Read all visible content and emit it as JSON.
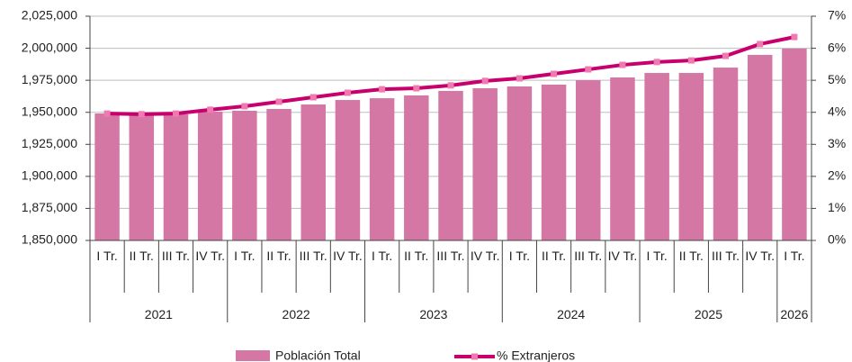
{
  "chart_data": {
    "type": "combo",
    "categories": [
      "I Tr.",
      "II Tr.",
      "III Tr.",
      "IV Tr.",
      "I Tr.",
      "II Tr.",
      "III Tr.",
      "IV Tr.",
      "I Tr.",
      "II Tr.",
      "III Tr.",
      "IV Tr.",
      "I Tr.",
      "II Tr.",
      "III Tr.",
      "IV Tr.",
      "I Tr.",
      "II Tr.",
      "III Tr.",
      "IV Tr.",
      "I Tr."
    ],
    "years": [
      "2021",
      "2021",
      "2021",
      "2021",
      "2022",
      "2022",
      "2022",
      "2022",
      "2023",
      "2023",
      "2023",
      "2023",
      "2024",
      "2024",
      "2024",
      "2024",
      "2025",
      "2025",
      "2025",
      "2025",
      "2026"
    ],
    "series": [
      {
        "name": "Población Total",
        "type": "bar",
        "color": "#d477a5",
        "values": [
          1949100,
          1948400,
          1948400,
          1950500,
          1951200,
          1952600,
          1956100,
          1959600,
          1961000,
          1963200,
          1966700,
          1968800,
          1970200,
          1971600,
          1975100,
          1977200,
          1980700,
          1980700,
          1984900,
          1994800,
          1999700
        ]
      },
      {
        "name": "% Extranjeros",
        "type": "line",
        "axis": "y2",
        "color": "#c8006e",
        "marker_color": "#f07ab0",
        "values": [
          3.96,
          3.94,
          3.96,
          4.08,
          4.19,
          4.33,
          4.47,
          4.61,
          4.72,
          4.75,
          4.84,
          4.98,
          5.06,
          5.2,
          5.34,
          5.48,
          5.57,
          5.62,
          5.76,
          6.13,
          6.35
        ]
      }
    ],
    "ylim": [
      1850000,
      2025000
    ],
    "yticks": [
      {
        "value": 1850000,
        "label": "1,850,000"
      },
      {
        "value": 1875000,
        "label": "1,875,000"
      },
      {
        "value": 1900000,
        "label": "1,900,000"
      },
      {
        "value": 1925000,
        "label": "1,925,000"
      },
      {
        "value": 1950000,
        "label": "1,950,000"
      },
      {
        "value": 1975000,
        "label": "1,975,000"
      },
      {
        "value": 2000000,
        "label": "2,000,000"
      },
      {
        "value": 2025000,
        "label": "2,025,000"
      }
    ],
    "y2lim": [
      0,
      7
    ],
    "y2ticks": [
      {
        "value": 0,
        "label": "0%"
      },
      {
        "value": 1,
        "label": "1%"
      },
      {
        "value": 2,
        "label": "2%"
      },
      {
        "value": 3,
        "label": "3%"
      },
      {
        "value": 4,
        "label": "4%"
      },
      {
        "value": 5,
        "label": "5%"
      },
      {
        "value": 6,
        "label": "6%"
      },
      {
        "value": 7,
        "label": "7%"
      }
    ],
    "grid": true
  }
}
